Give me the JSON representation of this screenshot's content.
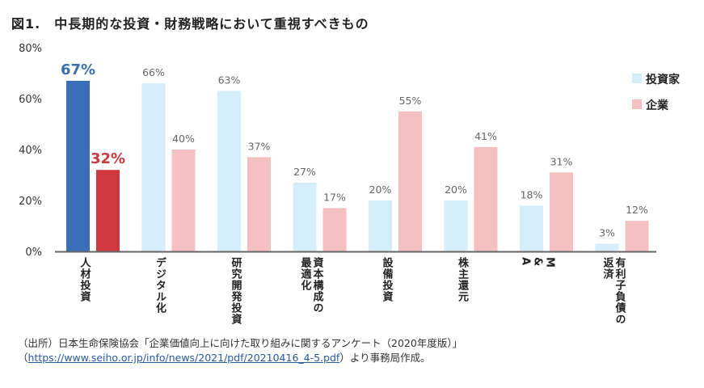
{
  "title": "図1.　中長期的な投資・財務戦略において重視すべきもの",
  "chart_data": {
    "type": "bar",
    "categories": [
      "人材投資",
      "デジタル化",
      "研究開発投資",
      "資本構成の\n最適化",
      "設備投資",
      "株主還元",
      "M\n&\nA",
      "有利子負債の\n返済"
    ],
    "series": [
      {
        "name": "投資家",
        "values": [
          67,
          66,
          63,
          27,
          20,
          20,
          18,
          3
        ],
        "color": "#d5eefb",
        "highlight_color": "#3a6eb8"
      },
      {
        "name": "企業",
        "values": [
          32,
          40,
          37,
          17,
          55,
          41,
          31,
          12
        ],
        "color": "#f4c0c1",
        "highlight_color": "#d0373f"
      }
    ],
    "data_labels": [
      [
        "67%",
        "66%",
        "63%",
        "27%",
        "20%",
        "20%",
        "18%",
        "3%"
      ],
      [
        "32%",
        "40%",
        "37%",
        "17%",
        "55%",
        "41%",
        "31%",
        "12%"
      ]
    ],
    "yticks": [
      "0%",
      "20%",
      "40%",
      "60%",
      "80%"
    ],
    "ylim": [
      0,
      80
    ],
    "grid": false,
    "legend": "right"
  },
  "source": {
    "line1": "（出所）日本生命保険協会「企業価値向上に向けた取り組みに関するアンケート（2020年度版）」",
    "open": "（",
    "link": "https://www.seiho.or.jp/info/news/2021/pdf/20210416_4-5.pdf",
    "close": "）より事務局作成。"
  }
}
